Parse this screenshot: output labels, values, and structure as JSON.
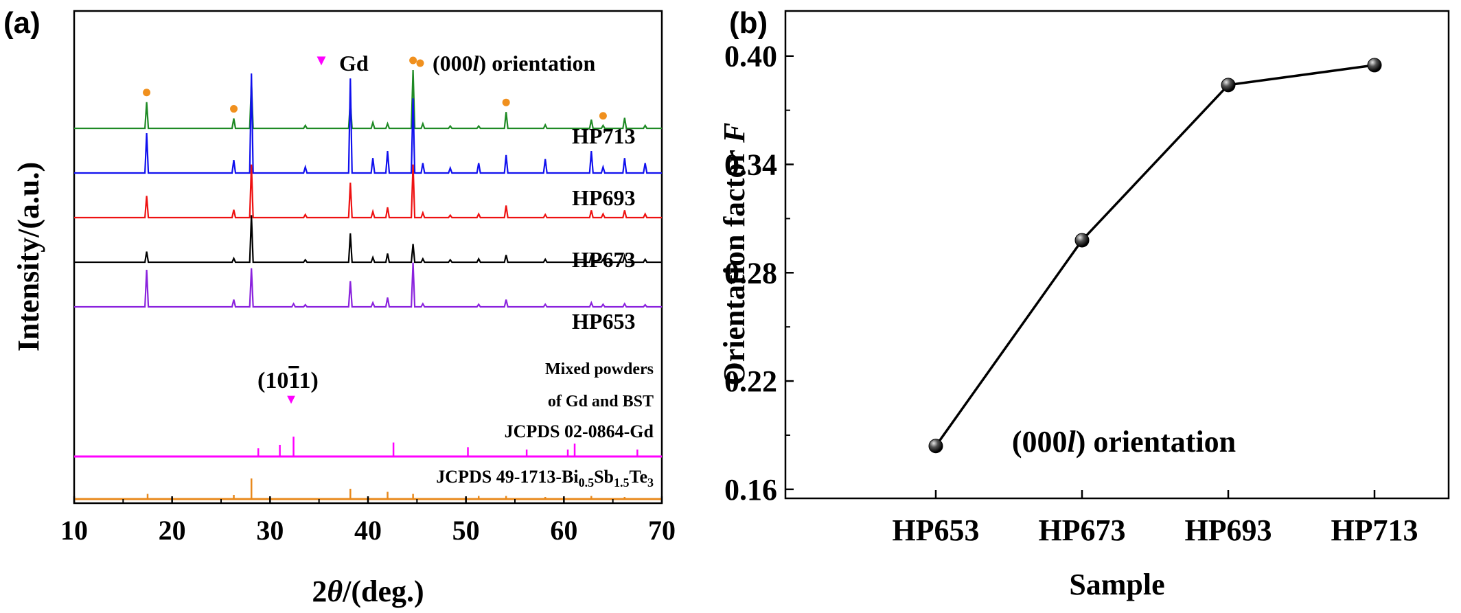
{
  "panel_a_label": "(a)",
  "panel_b_label": "(b)",
  "colors": {
    "HP713": "#1e8a24",
    "HP693": "#1010ee",
    "HP673": "#ee1111",
    "HP653": "#000000",
    "mixed": "#8a22dd",
    "gd_ref": "#ff00ff",
    "bst_ref": "#e8891c",
    "orientation_marker": "#f0901e",
    "gd_marker": "#ff00ff"
  },
  "chart_data": [
    {
      "type": "line",
      "xlabel_prefix": "2",
      "xlabel_theta": "θ",
      "xlabel_suffix": "/(deg.)",
      "ylabel": "Intensity/(a.u.)",
      "xlim": [
        10,
        70
      ],
      "x_ticks": [
        "10",
        "20",
        "30",
        "40",
        "50",
        "60",
        "70"
      ],
      "legend": {
        "gd": "Gd",
        "orientation_pre": "(000",
        "orientation_l": "l",
        "orientation_post": ") orientation",
        "placement": "top"
      },
      "peak_annotation": {
        "text_pre": "(10",
        "text_bar": "1",
        "text_post": "1)",
        "x": 32.4
      },
      "series": [
        {
          "name": "HP713",
          "peaks": [
            [
              17.4,
              0.45
            ],
            [
              26.3,
              0.17
            ],
            [
              28.1,
              0.78
            ],
            [
              33.6,
              0.05
            ],
            [
              38.2,
              0.47
            ],
            [
              40.5,
              0.1
            ],
            [
              42.0,
              0.08
            ],
            [
              44.6,
              1.0
            ],
            [
              45.6,
              0.08
            ],
            [
              48.4,
              0.04
            ],
            [
              51.3,
              0.04
            ],
            [
              54.1,
              0.28
            ],
            [
              58.1,
              0.06
            ],
            [
              62.8,
              0.15
            ],
            [
              64.0,
              0.05
            ],
            [
              66.2,
              0.18
            ],
            [
              68.3,
              0.05
            ]
          ],
          "orientation_markers_x": [
            17.4,
            26.3,
            44.6,
            54.1,
            64.0
          ]
        },
        {
          "name": "HP693",
          "peaks": [
            [
              17.4,
              0.4
            ],
            [
              26.3,
              0.13
            ],
            [
              28.1,
              1.0
            ],
            [
              33.6,
              0.06
            ],
            [
              38.2,
              0.95
            ],
            [
              40.5,
              0.15
            ],
            [
              42.0,
              0.22
            ],
            [
              44.6,
              0.75
            ],
            [
              45.6,
              0.1
            ],
            [
              48.4,
              0.05
            ],
            [
              51.3,
              0.1
            ],
            [
              54.1,
              0.18
            ],
            [
              58.1,
              0.14
            ],
            [
              62.8,
              0.22
            ],
            [
              64.0,
              0.06
            ],
            [
              66.2,
              0.15
            ],
            [
              68.3,
              0.1
            ]
          ]
        },
        {
          "name": "HP673",
          "peaks": [
            [
              17.4,
              0.36
            ],
            [
              26.3,
              0.13
            ],
            [
              28.1,
              0.88
            ],
            [
              33.6,
              0.05
            ],
            [
              38.2,
              0.58
            ],
            [
              40.5,
              0.1
            ],
            [
              42.0,
              0.17
            ],
            [
              44.6,
              0.88
            ],
            [
              45.6,
              0.08
            ],
            [
              48.4,
              0.04
            ],
            [
              51.3,
              0.06
            ],
            [
              54.1,
              0.2
            ],
            [
              58.1,
              0.05
            ],
            [
              62.8,
              0.12
            ],
            [
              64.0,
              0.06
            ],
            [
              66.2,
              0.12
            ],
            [
              68.3,
              0.06
            ]
          ]
        },
        {
          "name": "HP653",
          "peaks": [
            [
              17.4,
              0.22
            ],
            [
              26.3,
              0.08
            ],
            [
              28.1,
              0.98
            ],
            [
              33.6,
              0.05
            ],
            [
              38.2,
              0.6
            ],
            [
              40.5,
              0.1
            ],
            [
              42.0,
              0.18
            ],
            [
              44.6,
              0.38
            ],
            [
              45.6,
              0.07
            ],
            [
              48.4,
              0.05
            ],
            [
              51.3,
              0.07
            ],
            [
              54.1,
              0.15
            ],
            [
              58.1,
              0.06
            ],
            [
              62.8,
              0.14
            ],
            [
              64.0,
              0.06
            ],
            [
              66.2,
              0.13
            ],
            [
              68.3,
              0.06
            ]
          ]
        },
        {
          "name_line1": "Mixed powders",
          "name_line2": "of Gd and BST",
          "peaks": [
            [
              17.4,
              0.72
            ],
            [
              26.3,
              0.14
            ],
            [
              28.1,
              0.75
            ],
            [
              32.4,
              0.06
            ],
            [
              33.6,
              0.04
            ],
            [
              38.2,
              0.5
            ],
            [
              40.5,
              0.08
            ],
            [
              42.0,
              0.18
            ],
            [
              44.6,
              0.86
            ],
            [
              45.6,
              0.06
            ],
            [
              51.3,
              0.05
            ],
            [
              54.1,
              0.14
            ],
            [
              58.1,
              0.05
            ],
            [
              62.8,
              0.08
            ],
            [
              64.0,
              0.05
            ],
            [
              66.2,
              0.06
            ],
            [
              68.3,
              0.04
            ]
          ]
        }
      ],
      "reference_patterns": [
        {
          "name": "JCPDS 02-0864-Gd",
          "lines": [
            [
              28.8,
              0.35
            ],
            [
              31.0,
              0.5
            ],
            [
              32.4,
              0.85
            ],
            [
              42.6,
              0.6
            ],
            [
              50.2,
              0.4
            ],
            [
              56.2,
              0.3
            ],
            [
              60.4,
              0.3
            ],
            [
              61.1,
              0.55
            ],
            [
              67.5,
              0.3
            ]
          ]
        },
        {
          "name_pre": "JCPDS 49-1713-Bi",
          "sub1": "0.5",
          "mid1": "Sb",
          "sub2": "1.5",
          "mid2": "Te",
          "sub3": "3",
          "lines": [
            [
              17.5,
              0.25
            ],
            [
              26.3,
              0.2
            ],
            [
              28.1,
              1.0
            ],
            [
              38.2,
              0.5
            ],
            [
              42.0,
              0.35
            ],
            [
              44.6,
              0.25
            ],
            [
              51.3,
              0.15
            ],
            [
              54.1,
              0.15
            ],
            [
              58.1,
              0.1
            ],
            [
              62.8,
              0.15
            ],
            [
              66.2,
              0.1
            ]
          ]
        }
      ]
    },
    {
      "type": "line",
      "xlabel": "Sample",
      "ylabel_text": "Orientation factor ",
      "ylabel_italic": "F",
      "categories": [
        "HP653",
        "HP673",
        "HP693",
        "HP713"
      ],
      "values": [
        0.184,
        0.298,
        0.384,
        0.395
      ],
      "ylim": [
        0.155,
        0.425
      ],
      "y_ticks": [
        0.16,
        0.22,
        0.28,
        0.34,
        0.4
      ],
      "y_tick_labels": [
        "0.16",
        "0.22",
        "0.28",
        "0.34",
        "0.40"
      ],
      "annotation_pre": "(000",
      "annotation_l": "l",
      "annotation_post": ") orientation"
    }
  ]
}
